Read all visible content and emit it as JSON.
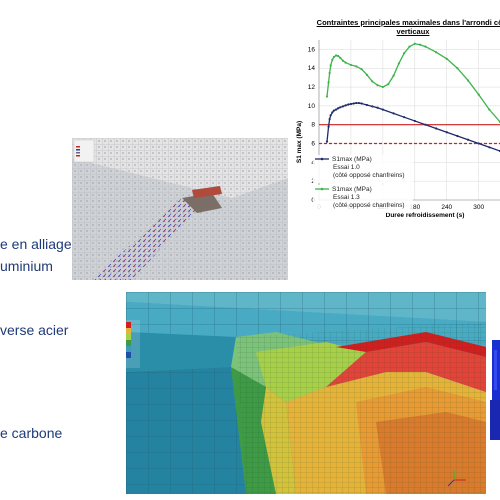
{
  "labels": {
    "alliage": "e en alliage",
    "aluminium": "uminium",
    "acier": "verse acier",
    "carbone": "e carbone"
  },
  "chart_data": {
    "type": "line",
    "title": "Contraintes principales maximales dans l'arrondi côté",
    "subtitle": "verticaux",
    "xlabel": "Durée refroidissement (s)",
    "ylabel": "S1 max (MPa)",
    "xlim": [
      0,
      340
    ],
    "ylim": [
      0,
      17
    ],
    "xticks": [
      "0",
      "60",
      "120",
      "180",
      "240",
      "300"
    ],
    "yticks": [
      "0",
      "2",
      "4",
      "6",
      "8",
      "10",
      "12",
      "14",
      "16"
    ],
    "legend_position": "bottom-left",
    "series": [
      {
        "name": "S1max (MPa)",
        "legend_lines": [
          "S1max (MPa)",
          "Essai 1.0",
          "(côté opposé chanfreins)"
        ],
        "color": "#1f2a6b",
        "x": [
          15,
          18,
          20,
          22,
          25,
          28,
          32,
          36,
          40,
          45,
          50,
          55,
          60,
          65,
          70,
          75,
          80,
          90,
          100,
          110,
          120,
          140,
          160,
          180,
          200,
          220,
          240,
          260,
          280,
          300,
          320,
          340
        ],
        "y": [
          6.2,
          7.8,
          8.6,
          9.0,
          9.3,
          9.5,
          9.6,
          9.75,
          9.85,
          9.95,
          10.05,
          10.15,
          10.2,
          10.25,
          10.3,
          10.3,
          10.25,
          10.1,
          9.95,
          9.8,
          9.6,
          9.2,
          8.8,
          8.4,
          8.0,
          7.6,
          7.2,
          6.8,
          6.4,
          6.0,
          5.6,
          5.2
        ]
      },
      {
        "name": "S1max (MPa)",
        "legend_lines": [
          "S1max (MPa)",
          "Essai 1.3",
          "(côté opposé chanfreins)"
        ],
        "color": "#3cb44b",
        "x": [
          15,
          18,
          20,
          22,
          25,
          28,
          32,
          36,
          40,
          45,
          50,
          60,
          70,
          80,
          90,
          100,
          110,
          120,
          130,
          140,
          150,
          160,
          170,
          180,
          190,
          200,
          220,
          240,
          260,
          280,
          300,
          320,
          340
        ],
        "y": [
          11.0,
          12.5,
          13.5,
          14.3,
          14.9,
          15.2,
          15.35,
          15.3,
          15.1,
          14.8,
          14.6,
          14.35,
          14.2,
          13.9,
          13.3,
          12.6,
          12.2,
          12.0,
          12.3,
          13.2,
          14.5,
          15.6,
          16.3,
          16.6,
          16.5,
          16.3,
          15.7,
          15.0,
          14.0,
          12.7,
          11.2,
          9.6,
          8.3
        ]
      }
    ],
    "reference_lines": [
      {
        "y": 8,
        "color": "#d01f1f",
        "style": "solid"
      },
      {
        "y": 6,
        "color": "#d01f1f",
        "style": "dashed"
      }
    ]
  }
}
